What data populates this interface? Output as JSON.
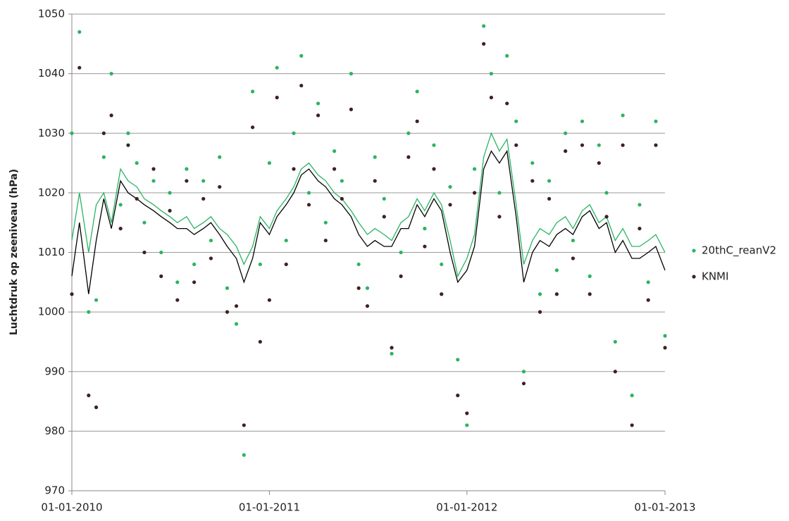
{
  "chart_data": {
    "type": "scatter",
    "y_label": "Luchtdruk op zeeniveau (hPa)",
    "x": [
      "01-01-2010",
      "15-01-2010",
      "01-02-2010",
      "15-02-2010",
      "01-03-2010",
      "15-03-2010",
      "01-04-2010",
      "15-04-2010",
      "01-05-2010",
      "15-05-2010",
      "01-06-2010",
      "15-06-2010",
      "01-07-2010",
      "15-07-2010",
      "01-08-2010",
      "15-08-2010",
      "01-09-2010",
      "15-09-2010",
      "01-10-2010",
      "15-10-2010",
      "01-11-2010",
      "15-11-2010",
      "01-12-2010",
      "15-12-2010",
      "01-01-2011",
      "15-01-2011",
      "01-02-2011",
      "15-02-2011",
      "01-03-2011",
      "15-03-2011",
      "01-04-2011",
      "15-04-2011",
      "01-05-2011",
      "15-05-2011",
      "01-06-2011",
      "15-06-2011",
      "01-07-2011",
      "15-07-2011",
      "01-08-2011",
      "15-08-2011",
      "01-09-2011",
      "15-09-2011",
      "01-10-2011",
      "15-10-2011",
      "01-11-2011",
      "15-11-2011",
      "01-12-2011",
      "15-12-2011",
      "01-01-2012",
      "15-01-2012",
      "01-02-2012",
      "15-02-2012",
      "01-03-2012",
      "15-03-2012",
      "01-04-2012",
      "15-04-2012",
      "01-05-2012",
      "15-05-2012",
      "01-06-2012",
      "15-06-2012",
      "01-07-2012",
      "15-07-2012",
      "01-08-2012",
      "15-08-2012",
      "01-09-2012",
      "15-09-2012",
      "01-10-2012",
      "15-10-2012",
      "01-11-2012",
      "15-11-2012",
      "01-12-2012",
      "15-12-2012",
      "01-01-2013"
    ],
    "series": [
      {
        "name": "20thC_reanV2",
        "color": "#2bb463",
        "kind": "points",
        "values": [
          1030,
          1047,
          1000,
          1002,
          1026,
          1040,
          1018,
          1030,
          1025,
          1015,
          1022,
          1010,
          1020,
          1005,
          1024,
          1008,
          1022,
          1012,
          1026,
          1004,
          998,
          976,
          1037,
          1008,
          1025,
          1041,
          1012,
          1030,
          1043,
          1020,
          1035,
          1015,
          1027,
          1022,
          1040,
          1008,
          1004,
          1026,
          1019,
          993,
          1010,
          1030,
          1037,
          1014,
          1028,
          1008,
          1021,
          992,
          981,
          1024,
          1048,
          1040,
          1020,
          1043,
          1032,
          990,
          1025,
          1003,
          1022,
          1007,
          1030,
          1012,
          1032,
          1006,
          1028,
          1020,
          995,
          1033,
          986,
          1018,
          1005,
          1032,
          996
        ]
      },
      {
        "name": "KNMI",
        "color": "#3d2220",
        "kind": "points",
        "values": [
          1003,
          1041,
          986,
          984,
          1030,
          1033,
          1014,
          1028,
          1019,
          1010,
          1024,
          1006,
          1017,
          1002,
          1022,
          1005,
          1019,
          1009,
          1021,
          1000,
          1001,
          981,
          1031,
          995,
          1002,
          1036,
          1008,
          1024,
          1038,
          1018,
          1033,
          1012,
          1024,
          1019,
          1034,
          1004,
          1001,
          1022,
          1016,
          994,
          1006,
          1026,
          1032,
          1011,
          1024,
          1003,
          1018,
          986,
          983,
          1020,
          1045,
          1036,
          1016,
          1035,
          1028,
          988,
          1022,
          1000,
          1019,
          1003,
          1027,
          1009,
          1028,
          1003,
          1025,
          1016,
          990,
          1028,
          981,
          1014,
          1002,
          1028,
          994
        ]
      },
      {
        "color": "#2bb463",
        "kind": "line",
        "values": [
          1012,
          1020,
          1010,
          1018,
          1020,
          1015,
          1024,
          1022,
          1021,
          1019,
          1018,
          1017,
          1016,
          1015,
          1016,
          1014,
          1015,
          1016,
          1014,
          1013,
          1011,
          1008,
          1011,
          1016,
          1014,
          1017,
          1019,
          1021,
          1024,
          1025,
          1023,
          1022,
          1020,
          1019,
          1017,
          1015,
          1013,
          1014,
          1013,
          1012,
          1015,
          1016,
          1019,
          1017,
          1020,
          1018,
          1012,
          1006,
          1009,
          1013,
          1026,
          1030,
          1027,
          1029,
          1018,
          1008,
          1012,
          1014,
          1013,
          1015,
          1016,
          1014,
          1017,
          1018,
          1015,
          1016,
          1012,
          1014,
          1011,
          1011,
          1012,
          1013,
          1010
        ]
      },
      {
        "color": "#000000",
        "kind": "line",
        "values": [
          1006,
          1015,
          1003,
          1012,
          1019,
          1014,
          1022,
          1020,
          1019,
          1018,
          1017,
          1016,
          1015,
          1014,
          1014,
          1013,
          1014,
          1015,
          1013,
          1011,
          1009,
          1005,
          1009,
          1015,
          1013,
          1016,
          1018,
          1020,
          1023,
          1024,
          1022,
          1021,
          1019,
          1018,
          1016,
          1013,
          1011,
          1012,
          1011,
          1011,
          1014,
          1014,
          1018,
          1016,
          1019,
          1017,
          1010,
          1005,
          1007,
          1011,
          1024,
          1027,
          1025,
          1027,
          1016,
          1005,
          1010,
          1012,
          1011,
          1013,
          1014,
          1013,
          1016,
          1017,
          1014,
          1015,
          1010,
          1012,
          1009,
          1009,
          1010,
          1011,
          1007
        ]
      }
    ],
    "xlim": [
      "01-01-2010",
      "01-01-2013"
    ],
    "xticks": [
      "01-01-2010",
      "01-01-2011",
      "01-01-2012",
      "01-01-2013"
    ],
    "ylim": [
      970,
      1050
    ],
    "yticks": [
      970,
      980,
      990,
      1000,
      1010,
      1020,
      1030,
      1040,
      1050
    ],
    "grid": true,
    "legend": "right"
  }
}
